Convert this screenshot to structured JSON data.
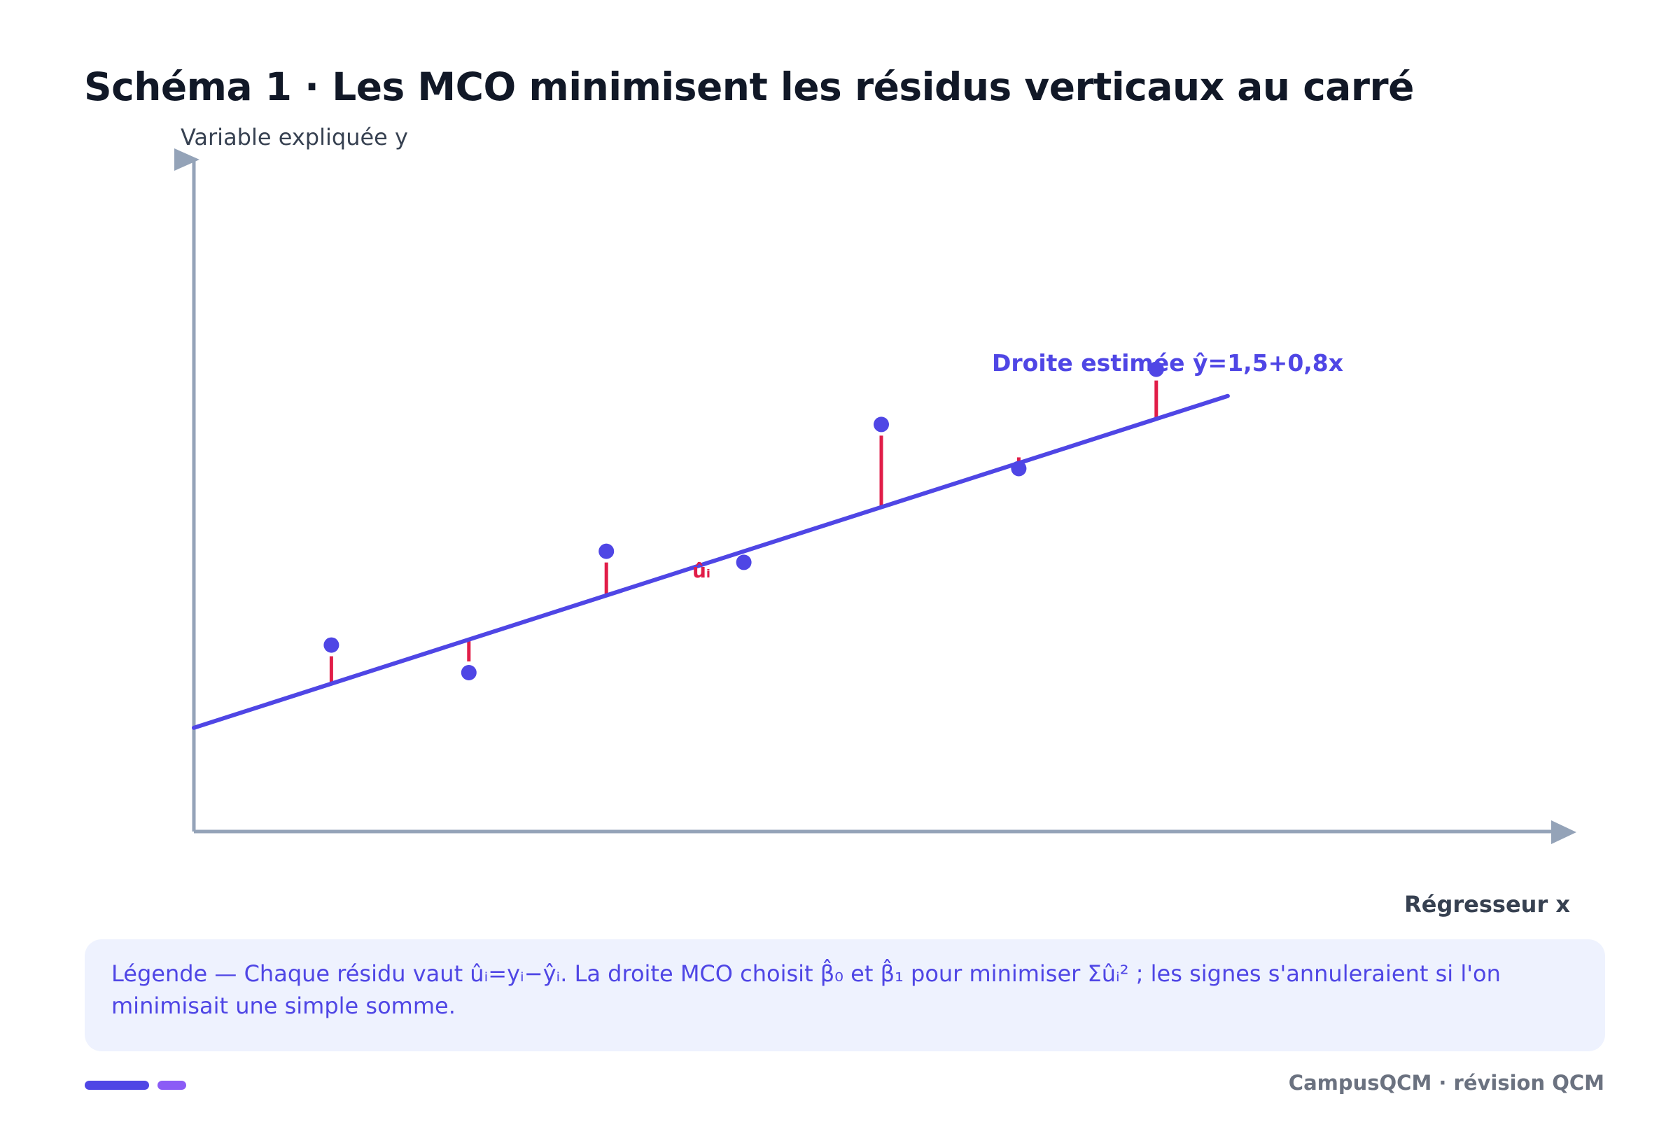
{
  "title": "Schéma 1 · Les MCO minimisent les résidus verticaux au carré",
  "axes": {
    "y_label": "Variable expliquée y",
    "x_label": "Régresseur x"
  },
  "fit_line": {
    "label": "Droite estimée ŷ=1,5+0,8x",
    "intercept": 1.5,
    "slope": 0.8,
    "color": "#4f46e5"
  },
  "residual_label": "ûᵢ",
  "residual_color": "#e11d48",
  "point_color": "#4f46e5",
  "axis_color": "#94a3b8",
  "points": [
    {
      "x": 1,
      "y": 3.0
    },
    {
      "x": 2,
      "y": 2.5
    },
    {
      "x": 3,
      "y": 4.7
    },
    {
      "x": 4,
      "y": 4.5
    },
    {
      "x": 5,
      "y": 7.0
    },
    {
      "x": 6,
      "y": 6.2
    },
    {
      "x": 7,
      "y": 8.0
    }
  ],
  "legend": "Légende — Chaque résidu vaut ûᵢ=yᵢ−ŷᵢ. La droite MCO choisit β̂₀ et β̂₁ pour minimiser Σûᵢ² ; les signes s'annuleraient si l'on minimisait une simple somme.",
  "footer": "CampusQCM · révision QCM"
}
